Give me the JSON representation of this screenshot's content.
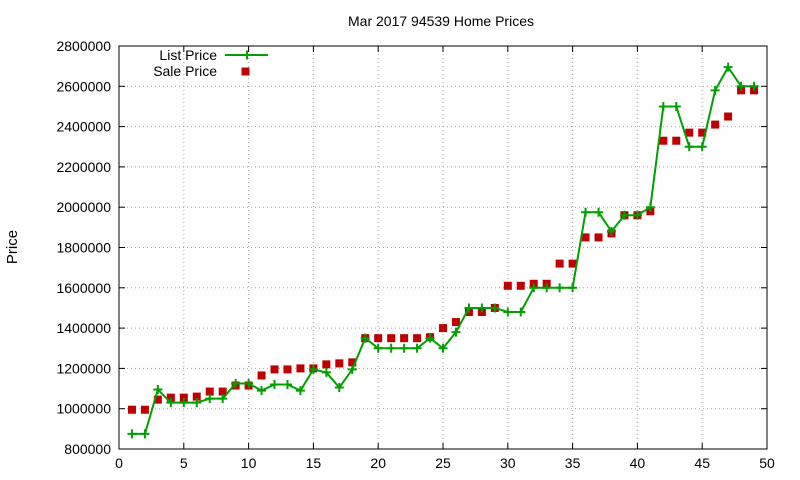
{
  "chart_data": {
    "type": "line",
    "title": "Mar 2017 94539 Home Prices",
    "xlabel": "",
    "ylabel": "Price",
    "xlim": [
      0,
      50
    ],
    "ylim": [
      800000,
      2800000
    ],
    "x_ticks": [
      0,
      5,
      10,
      15,
      20,
      25,
      30,
      35,
      40,
      45,
      50
    ],
    "y_ticks": [
      800000,
      1000000,
      1200000,
      1400000,
      1600000,
      1800000,
      2000000,
      2200000,
      2400000,
      2600000,
      2800000
    ],
    "grid": true,
    "legend_position": "top-left",
    "series": [
      {
        "name": "List Price",
        "style": "linespoints",
        "marker": "plus",
        "color": "#00a000",
        "x": [
          1,
          2,
          3,
          4,
          5,
          6,
          7,
          8,
          9,
          10,
          11,
          12,
          13,
          14,
          15,
          16,
          17,
          18,
          19,
          20,
          21,
          22,
          23,
          24,
          25,
          26,
          27,
          28,
          29,
          30,
          31,
          32,
          33,
          34,
          35,
          36,
          37,
          38,
          39,
          40,
          41,
          42,
          43,
          44,
          45,
          46,
          47,
          48,
          49
        ],
        "values": [
          875000,
          875000,
          1095000,
          1030000,
          1030000,
          1030000,
          1050000,
          1050000,
          1125000,
          1125000,
          1090000,
          1120000,
          1120000,
          1090000,
          1195000,
          1180000,
          1105000,
          1195000,
          1350000,
          1300000,
          1300000,
          1300000,
          1300000,
          1350000,
          1300000,
          1380000,
          1500000,
          1500000,
          1500000,
          1480000,
          1480000,
          1600000,
          1600000,
          1600000,
          1600000,
          1975000,
          1975000,
          1880000,
          1960000,
          1960000,
          2000000,
          2500000,
          2500000,
          2300000,
          2300000,
          2580000,
          2695000,
          2600000,
          2600000
        ]
      },
      {
        "name": "Sale Price",
        "style": "points",
        "marker": "square",
        "color": "#c00000",
        "x": [
          1,
          2,
          3,
          4,
          5,
          6,
          7,
          8,
          9,
          10,
          11,
          12,
          13,
          14,
          15,
          16,
          17,
          18,
          19,
          20,
          21,
          22,
          23,
          24,
          25,
          26,
          27,
          28,
          29,
          30,
          31,
          32,
          33,
          34,
          35,
          36,
          37,
          38,
          39,
          40,
          41,
          42,
          43,
          44,
          45,
          46,
          47,
          48,
          49
        ],
        "values": [
          995000,
          995000,
          1045000,
          1055000,
          1055000,
          1060000,
          1085000,
          1085000,
          1115000,
          1115000,
          1165000,
          1195000,
          1195000,
          1200000,
          1200000,
          1220000,
          1225000,
          1230000,
          1350000,
          1350000,
          1350000,
          1350000,
          1350000,
          1355000,
          1400000,
          1430000,
          1480000,
          1480000,
          1500000,
          1610000,
          1610000,
          1620000,
          1620000,
          1720000,
          1720000,
          1850000,
          1850000,
          1870000,
          1960000,
          1960000,
          1980000,
          2330000,
          2330000,
          2370000,
          2370000,
          2410000,
          2450000,
          2580000,
          2580000
        ]
      }
    ]
  }
}
